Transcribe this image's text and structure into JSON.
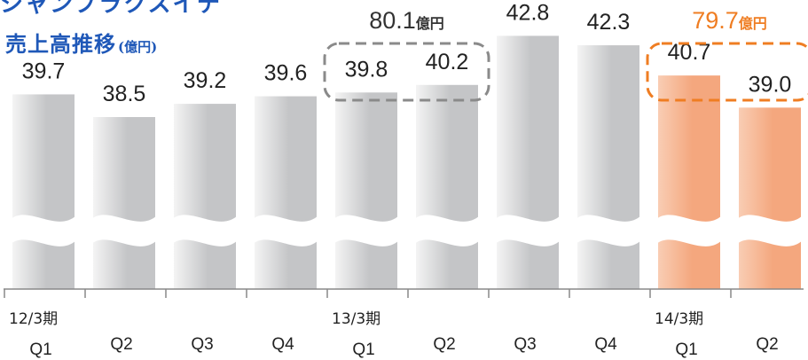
{
  "header": {
    "cut_text": "シャンプラクスイテ",
    "title": "売上高推移",
    "unit": "(億円)"
  },
  "chart_data": {
    "type": "bar",
    "title": "売上高推移",
    "unit": "(億円)",
    "categories": [
      "Q1",
      "Q2",
      "Q3",
      "Q4",
      "Q1",
      "Q2",
      "Q3",
      "Q4",
      "Q1",
      "Q2"
    ],
    "fiscal_years": [
      {
        "label": "12/3期",
        "start_index": 0
      },
      {
        "label": "13/3期",
        "start_index": 4
      },
      {
        "label": "14/3期",
        "start_index": 8
      }
    ],
    "values": [
      39.7,
      38.5,
      39.2,
      39.6,
      39.8,
      40.2,
      42.8,
      42.3,
      40.7,
      39.0
    ],
    "value_labels": [
      "39.7",
      "38.5",
      "39.2",
      "39.6",
      "39.8",
      "40.2",
      "42.8",
      "42.3",
      "40.7",
      "39.0"
    ],
    "highlight_indices": [
      8,
      9
    ],
    "axis_break": true,
    "colors": {
      "bar": "#c4c5c7",
      "bar_light": "#f4f4f4",
      "highlight": "#f4a77e",
      "highlight_light": "#f9cdb4",
      "group_box_gray": "#8a8a8a",
      "group_box_orange": "#ef7d22",
      "axis": "#888888"
    },
    "group_totals": [
      {
        "value": "80.1",
        "unit": "億円",
        "indices": [
          4,
          5
        ],
        "style": "gray"
      },
      {
        "value": "79.7",
        "unit": "億円",
        "indices": [
          8,
          9
        ],
        "style": "orange"
      }
    ]
  }
}
